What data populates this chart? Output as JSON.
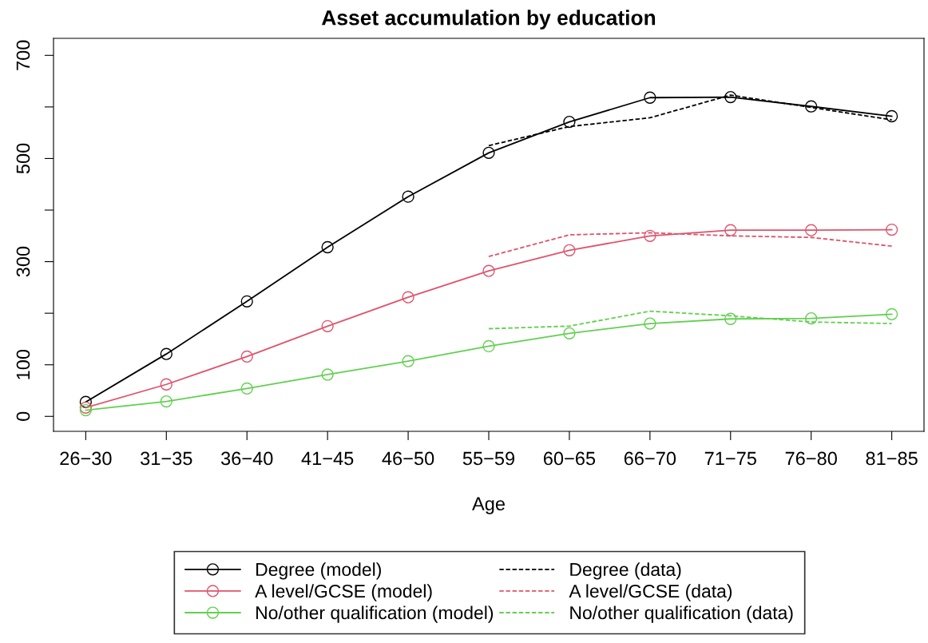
{
  "chart_data": {
    "type": "line",
    "title": "Asset accumulation by education",
    "xlabel": "Age",
    "categories": [
      "26−30",
      "31−35",
      "36−40",
      "41−45",
      "46−50",
      "55−59",
      "60−65",
      "66−70",
      "71−75",
      "76−80",
      "81−85"
    ],
    "ylim": [
      -29,
      733
    ],
    "yticks": [
      0,
      100,
      {
        "value": 200,
        "label": null
      },
      300,
      {
        "value": 400,
        "label": null
      },
      500,
      {
        "value": 600,
        "label": null
      },
      700
    ],
    "grid": false,
    "legend": "bottom",
    "series": [
      {
        "name": "Degree (model)",
        "color": "#000000",
        "marker": "circle",
        "line_style": "solid",
        "values": [
          28,
          121,
          223,
          328,
          426,
          511,
          571,
          618,
          619,
          601,
          582
        ]
      },
      {
        "name": "A level/GCSE (model)",
        "color": "#df536b",
        "marker": "circle",
        "line_style": "solid",
        "values": [
          17,
          62,
          116,
          175,
          231,
          282,
          322,
          350,
          361,
          361,
          362
        ]
      },
      {
        "name": "No/other qualification (model)",
        "color": "#61d04f",
        "marker": "circle",
        "line_style": "solid",
        "values": [
          12,
          29,
          54,
          81,
          107,
          136,
          161,
          180,
          189,
          190,
          198
        ]
      },
      {
        "name": "Degree (data)",
        "color": "#000000",
        "marker": "none",
        "line_style": "dashed",
        "values": [
          null,
          null,
          null,
          null,
          null,
          525,
          562,
          579,
          623,
          599,
          575
        ]
      },
      {
        "name": "A level/GCSE (data)",
        "color": "#df536b",
        "marker": "none",
        "line_style": "dashed",
        "values": [
          null,
          null,
          null,
          null,
          null,
          310,
          352,
          356,
          350,
          347,
          330
        ]
      },
      {
        "name": "No/other qualification (data)",
        "color": "#61d04f",
        "marker": "none",
        "line_style": "dashed",
        "values": [
          null,
          null,
          null,
          null,
          null,
          170,
          175,
          204,
          195,
          183,
          180
        ]
      }
    ]
  }
}
